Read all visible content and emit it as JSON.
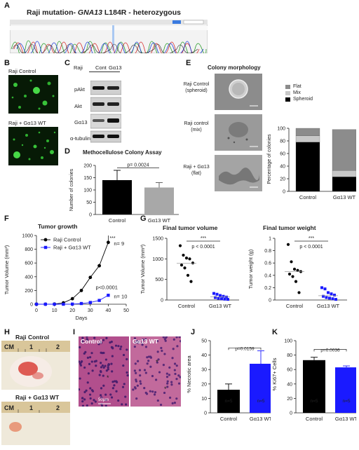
{
  "panels": {
    "A": {
      "letter": "A",
      "title_prefix": "Raji mutation- ",
      "title_gene": "GNA13",
      "title_suffix": " L184R - heterozygous"
    },
    "B": {
      "letter": "B",
      "label_top": "Raji Control",
      "label_bottom": "Raji + Gα13 WT"
    },
    "C": {
      "letter": "C",
      "header_cell": "Raji",
      "header_cols": [
        "Cont",
        "Gα13"
      ],
      "rows": [
        "pAkt",
        "Akt",
        "Gα13",
        "α-tubulin"
      ]
    },
    "D": {
      "letter": "D",
      "title": "Methocellulose Colony Assay",
      "ylabel": "Number of colonies",
      "pvalue": "p= 0.0024"
    },
    "E": {
      "letter": "E",
      "title": "Colony morphology",
      "rows": [
        {
          "line1": "Raji Control",
          "line2": "(spheroid)"
        },
        {
          "line1": "Raji control",
          "line2": "(mix)"
        },
        {
          "line1": "Raji + Gα13",
          "line2": "(flat)"
        }
      ],
      "legend": [
        "Flat",
        "Mix",
        "Spheroid"
      ],
      "ylabel": "Percentage of colonies"
    },
    "F": {
      "letter": "F",
      "title": "Tumor growth",
      "ylabel": "Tumor Volume (mm³)",
      "xlabel": "Days",
      "legend": [
        "Raji Control",
        "Raji + Gα13 WT"
      ],
      "sig": "***",
      "n_top": "n= 9",
      "p": "p<0.0001",
      "n_bottom": "n= 10"
    },
    "G": {
      "letter": "G",
      "title_left": "Final tumor volume",
      "title_right": "Final tumor weight",
      "ylabel_left": "Tumor Volume (mm³)",
      "ylabel_right": "Tumor weight (g)",
      "sig": "***",
      "p": "p < 0.0001"
    },
    "H": {
      "letter": "H",
      "label_top": "Raji Control",
      "label_bottom": "Raji + Gα13 WT",
      "ruler_cm": "CM",
      "ruler_nums": [
        "1",
        "2"
      ]
    },
    "I": {
      "letter": "I",
      "label_left": "Control",
      "label_right": "Gα13 WT",
      "scale": "50μm"
    },
    "J": {
      "letter": "J",
      "ylabel": "% Necrotic area",
      "pvalue": "p=0.0159",
      "n_left": "n=5",
      "n_right": "n=5"
    },
    "K": {
      "letter": "K",
      "ylabel": "% Ki67+ Cells",
      "pvalue": "p=0.0036",
      "n_left": "n=5",
      "n_right": "n=5"
    }
  },
  "colors": {
    "control": "#000000",
    "wt": "#1a1aff",
    "grey": "#a8a8a8",
    "mix": "#c8c8c8",
    "flat": "#8c8c8c"
  },
  "chart_data": [
    {
      "id": "D",
      "type": "bar",
      "categories": [
        "Control",
        "Gα13 WT"
      ],
      "values": [
        140,
        110
      ],
      "errors": [
        40,
        20
      ],
      "colors": [
        "#000000",
        "#a8a8a8"
      ],
      "ylim": [
        0,
        200
      ],
      "yticks": [
        0,
        50,
        100,
        150,
        200
      ]
    },
    {
      "id": "E",
      "type": "bar",
      "stacked": true,
      "categories": [
        "Control",
        "Gα13 WT"
      ],
      "series": [
        {
          "name": "Spheroid",
          "values": [
            78,
            23
          ]
        },
        {
          "name": "Mix",
          "values": [
            10,
            10
          ]
        },
        {
          "name": "Flat",
          "values": [
            12,
            65
          ]
        }
      ],
      "ylim": [
        0,
        100
      ],
      "yticks": [
        0,
        20,
        40,
        60,
        80,
        100
      ]
    },
    {
      "id": "F",
      "type": "line",
      "x": [
        0,
        5,
        10,
        15,
        20,
        25,
        30,
        35,
        40
      ],
      "series": [
        {
          "name": "Raji Control",
          "values": [
            0,
            0,
            2,
            20,
            80,
            200,
            390,
            560,
            900
          ]
        },
        {
          "name": "Raji + Gα13 WT",
          "values": [
            0,
            0,
            0,
            0,
            2,
            10,
            25,
            55,
            130
          ]
        }
      ],
      "xlim": [
        0,
        50
      ],
      "ylim": [
        0,
        1000
      ],
      "xticks": [
        0,
        10,
        20,
        30,
        40,
        50
      ],
      "yticks": [
        0,
        200,
        400,
        600,
        800,
        1000
      ]
    },
    {
      "id": "G1",
      "type": "scatter",
      "categories": [
        "Control",
        "Gα13 WT"
      ],
      "series": [
        {
          "name": "Control",
          "values": [
            1320,
            1090,
            1020,
            1000,
            900,
            850,
            780,
            600,
            450
          ]
        },
        {
          "name": "Gα13 WT",
          "values": [
            160,
            140,
            110,
            90,
            70,
            60,
            40,
            30,
            20,
            15
          ]
        }
      ],
      "means": [
        890,
        75
      ],
      "ylim": [
        0,
        1500
      ],
      "yticks": [
        0,
        500,
        1000,
        1500
      ]
    },
    {
      "id": "G2",
      "type": "scatter",
      "categories": [
        "Control",
        "Gα13 WT"
      ],
      "series": [
        {
          "name": "Control",
          "values": [
            0.9,
            0.62,
            0.5,
            0.48,
            0.46,
            0.42,
            0.38,
            0.3,
            0.12
          ]
        },
        {
          "name": "Gα13 WT",
          "values": [
            0.2,
            0.18,
            0.12,
            0.1,
            0.08,
            0.06,
            0.04,
            0.03,
            0.02,
            0.01
          ]
        }
      ],
      "means": [
        0.46,
        0.07
      ],
      "ylim": [
        0,
        1.0
      ],
      "yticks": [
        0,
        0.2,
        0.4,
        0.6,
        0.8,
        1.0
      ]
    },
    {
      "id": "J",
      "type": "bar",
      "categories": [
        "Control",
        "Gα13 WT"
      ],
      "values": [
        16,
        34
      ],
      "errors": [
        4,
        9
      ],
      "colors": [
        "#000000",
        "#1a1aff"
      ],
      "ylim": [
        0,
        50
      ],
      "yticks": [
        0,
        10,
        20,
        30,
        40,
        50
      ]
    },
    {
      "id": "K",
      "type": "bar",
      "categories": [
        "Control",
        "Gα13 WT"
      ],
      "values": [
        73,
        63
      ],
      "errors": [
        4,
        2
      ],
      "colors": [
        "#000000",
        "#1a1aff"
      ],
      "ylim": [
        0,
        100
      ],
      "yticks": [
        0,
        20,
        40,
        60,
        80,
        100
      ]
    }
  ]
}
